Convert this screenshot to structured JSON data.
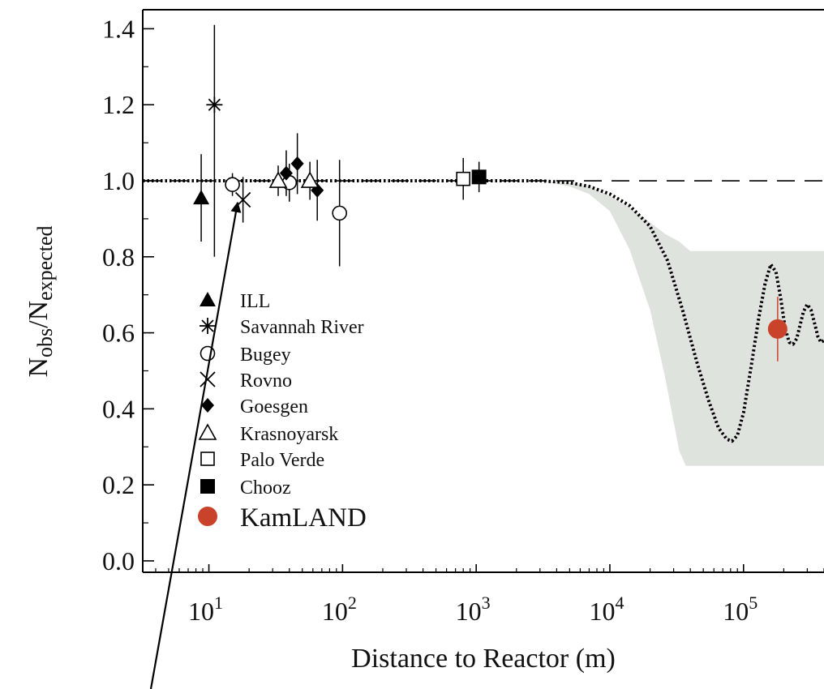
{
  "chart_data": {
    "type": "scatter",
    "xlabel": "Distance to Reactor (m)",
    "ylabel": "Nobs/Nexpected",
    "ylabel_parts": {
      "main": "N",
      "sub1": "obs",
      "slash": "/N",
      "sub2": "expected"
    },
    "x_scale": "log",
    "xlim": [
      3.2,
      400000
    ],
    "ylim": [
      -0.03,
      1.45
    ],
    "x_ticks": [
      {
        "value": 10,
        "base": "10",
        "exp": "1"
      },
      {
        "value": 100,
        "base": "10",
        "exp": "2"
      },
      {
        "value": 1000,
        "base": "10",
        "exp": "3"
      },
      {
        "value": 10000,
        "base": "10",
        "exp": "4"
      },
      {
        "value": 100000,
        "base": "10",
        "exp": "5"
      }
    ],
    "y_ticks": [
      {
        "value": 0.0,
        "label": "0.0"
      },
      {
        "value": 0.2,
        "label": "0.2"
      },
      {
        "value": 0.4,
        "label": "0.4"
      },
      {
        "value": 0.6,
        "label": "0.6"
      },
      {
        "value": 0.8,
        "label": "0.8"
      },
      {
        "value": 1.0,
        "label": "1.0"
      },
      {
        "value": 1.2,
        "label": "1.2"
      },
      {
        "value": 1.4,
        "label": "1.4"
      }
    ],
    "reference_line": {
      "y": 1.0,
      "style": "dashed"
    },
    "series": [
      {
        "name": "ILL",
        "marker": "filled-triangle",
        "color": "#000000",
        "points": [
          {
            "x": 8.76,
            "y": 0.955,
            "err_lo": 0.115,
            "err_hi": 0.115
          }
        ]
      },
      {
        "name": "Savannah River",
        "marker": "asterisk",
        "color": "#000000",
        "points": [
          {
            "x": 11.0,
            "y": 1.2,
            "err_lo": 0.4,
            "err_hi": 0.21
          }
        ]
      },
      {
        "name": "Bugey",
        "marker": "open-circle",
        "color": "#000000",
        "points": [
          {
            "x": 15.0,
            "y": 0.99,
            "err_lo": 0.03,
            "err_hi": 0.03
          },
          {
            "x": 40.0,
            "y": 0.995,
            "err_lo": 0.05,
            "err_hi": 0.05
          },
          {
            "x": 95.0,
            "y": 0.915,
            "err_lo": 0.14,
            "err_hi": 0.14
          }
        ]
      },
      {
        "name": "Rovno",
        "marker": "cross",
        "color": "#000000",
        "points": [
          {
            "x": 18.0,
            "y": 0.95,
            "err_lo": 0.06,
            "err_hi": 0.06
          }
        ]
      },
      {
        "name": "Goesgen",
        "marker": "filled-diamond",
        "color": "#000000",
        "points": [
          {
            "x": 37.9,
            "y": 1.02,
            "err_lo": 0.06,
            "err_hi": 0.06
          },
          {
            "x": 45.9,
            "y": 1.045,
            "err_lo": 0.08,
            "err_hi": 0.08
          },
          {
            "x": 64.7,
            "y": 0.975,
            "err_lo": 0.08,
            "err_hi": 0.08
          }
        ]
      },
      {
        "name": "Krasnoyarsk",
        "marker": "open-triangle",
        "color": "#000000",
        "points": [
          {
            "x": 33.0,
            "y": 1.0,
            "err_lo": 0.04,
            "err_hi": 0.04
          },
          {
            "x": 57.0,
            "y": 1.0,
            "err_lo": 0.05,
            "err_hi": 0.05
          }
        ]
      },
      {
        "name": "Palo Verde",
        "marker": "open-square",
        "color": "#000000",
        "points": [
          {
            "x": 800.0,
            "y": 1.005,
            "err_lo": 0.055,
            "err_hi": 0.055
          }
        ]
      },
      {
        "name": "Chooz",
        "marker": "filled-square",
        "color": "#000000",
        "points": [
          {
            "x": 1050.0,
            "y": 1.01,
            "err_lo": 0.04,
            "err_hi": 0.04
          }
        ]
      },
      {
        "name": "KamLAND",
        "marker": "filled-circle-large",
        "color": "#c9432b",
        "points": [
          {
            "x": 180000.0,
            "y": 0.61,
            "err_lo": 0.085,
            "err_hi": 0.085
          }
        ]
      }
    ],
    "oscillation_curve": {
      "style": "dotted",
      "x": [
        3.2,
        1000,
        3000,
        5000,
        7000,
        10000,
        14000,
        20000,
        27000,
        35000,
        45000,
        55000,
        65000,
        75000,
        82000,
        90000,
        100000,
        115000,
        130000,
        145000,
        160000,
        175000,
        190000,
        205000,
        220000,
        235000,
        250000,
        265000,
        280000,
        300000,
        320000,
        340000,
        360000,
        380000,
        400000
      ],
      "y": [
        1.0,
        1.0,
        1.0,
        0.995,
        0.985,
        0.965,
        0.935,
        0.88,
        0.79,
        0.66,
        0.52,
        0.42,
        0.35,
        0.32,
        0.315,
        0.33,
        0.39,
        0.52,
        0.64,
        0.73,
        0.78,
        0.76,
        0.69,
        0.61,
        0.575,
        0.57,
        0.585,
        0.62,
        0.655,
        0.675,
        0.66,
        0.625,
        0.59,
        0.575,
        0.58
      ]
    },
    "allowed_band": {
      "color": "#dfe3dd",
      "x": [
        3000,
        5000,
        7000,
        10000,
        14000,
        20000,
        26000,
        33000,
        37000,
        40000,
        45000,
        400000,
        400000,
        37000,
        33000,
        26000,
        20000,
        14000,
        10000,
        7000,
        5000,
        3000
      ],
      "y": [
        1.0,
        0.995,
        0.985,
        0.96,
        0.93,
        0.89,
        0.86,
        0.84,
        0.825,
        0.815,
        0.815,
        0.815,
        0.25,
        0.25,
        0.29,
        0.48,
        0.66,
        0.82,
        0.92,
        0.965,
        0.985,
        1.0
      ]
    },
    "legend": {
      "placement": "lower-left inside",
      "entries": [
        {
          "label": "ILL",
          "marker": "filled-triangle"
        },
        {
          "label": "Savannah River",
          "marker": "asterisk"
        },
        {
          "label": "Bugey",
          "marker": "open-circle"
        },
        {
          "label": "Rovno",
          "marker": "cross"
        },
        {
          "label": "Goesgen",
          "marker": "filled-diamond"
        },
        {
          "label": "Krasnoyarsk",
          "marker": "open-triangle"
        },
        {
          "label": "Palo Verde",
          "marker": "open-square"
        },
        {
          "label": "Chooz",
          "marker": "filled-square"
        },
        {
          "label": "KamLAND",
          "marker": "filled-circle-large",
          "color": "#c9432b"
        }
      ]
    },
    "annotation": {
      "type": "arrow",
      "from": "below plot",
      "points_to": "Rovno"
    },
    "grid": false
  }
}
